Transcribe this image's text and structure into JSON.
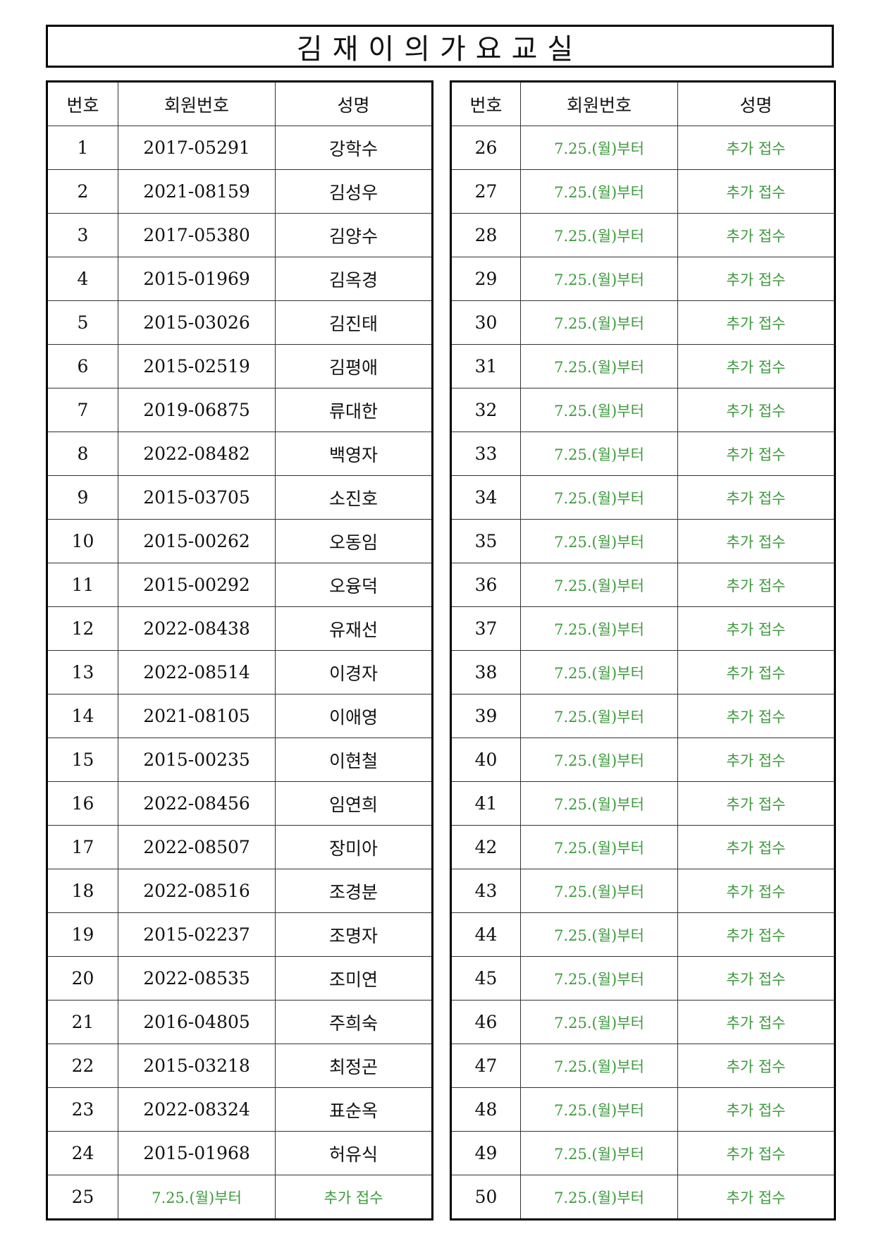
{
  "title": "김재이의가요교실",
  "headers": [
    "번호",
    "회원번호",
    "성명"
  ],
  "pending_text": {
    "member_no": "7.25.(월)부터",
    "name": "추가 접수"
  },
  "colors": {
    "pending": "#3c9a3c"
  },
  "members": [
    {
      "no": "1",
      "member_no": "2017-05291",
      "name": "강학수"
    },
    {
      "no": "2",
      "member_no": "2021-08159",
      "name": "김성우"
    },
    {
      "no": "3",
      "member_no": "2017-05380",
      "name": "김양수"
    },
    {
      "no": "4",
      "member_no": "2015-01969",
      "name": "김옥경"
    },
    {
      "no": "5",
      "member_no": "2015-03026",
      "name": "김진태"
    },
    {
      "no": "6",
      "member_no": "2015-02519",
      "name": "김평애"
    },
    {
      "no": "7",
      "member_no": "2019-06875",
      "name": "류대한"
    },
    {
      "no": "8",
      "member_no": "2022-08482",
      "name": "백영자"
    },
    {
      "no": "9",
      "member_no": "2015-03705",
      "name": "소진호"
    },
    {
      "no": "10",
      "member_no": "2015-00262",
      "name": "오동임"
    },
    {
      "no": "11",
      "member_no": "2015-00292",
      "name": "오융덕"
    },
    {
      "no": "12",
      "member_no": "2022-08438",
      "name": "유재선"
    },
    {
      "no": "13",
      "member_no": "2022-08514",
      "name": "이경자"
    },
    {
      "no": "14",
      "member_no": "2021-08105",
      "name": "이애영"
    },
    {
      "no": "15",
      "member_no": "2015-00235",
      "name": "이현철"
    },
    {
      "no": "16",
      "member_no": "2022-08456",
      "name": "임연희"
    },
    {
      "no": "17",
      "member_no": "2022-08507",
      "name": "장미아"
    },
    {
      "no": "18",
      "member_no": "2022-08516",
      "name": "조경분"
    },
    {
      "no": "19",
      "member_no": "2015-02237",
      "name": "조명자"
    },
    {
      "no": "20",
      "member_no": "2022-08535",
      "name": "조미연"
    },
    {
      "no": "21",
      "member_no": "2016-04805",
      "name": "주희숙"
    },
    {
      "no": "22",
      "member_no": "2015-03218",
      "name": "최정곤"
    },
    {
      "no": "23",
      "member_no": "2022-08324",
      "name": "표순옥"
    },
    {
      "no": "24",
      "member_no": "2015-01968",
      "name": "허유식"
    },
    {
      "no": "25",
      "member_no": "7.25.(월)부터",
      "name": "추가 접수",
      "pending": true
    },
    {
      "no": "26",
      "member_no": "7.25.(월)부터",
      "name": "추가 접수",
      "pending": true
    },
    {
      "no": "27",
      "member_no": "7.25.(월)부터",
      "name": "추가 접수",
      "pending": true
    },
    {
      "no": "28",
      "member_no": "7.25.(월)부터",
      "name": "추가 접수",
      "pending": true
    },
    {
      "no": "29",
      "member_no": "7.25.(월)부터",
      "name": "추가 접수",
      "pending": true
    },
    {
      "no": "30",
      "member_no": "7.25.(월)부터",
      "name": "추가 접수",
      "pending": true
    },
    {
      "no": "31",
      "member_no": "7.25.(월)부터",
      "name": "추가 접수",
      "pending": true
    },
    {
      "no": "32",
      "member_no": "7.25.(월)부터",
      "name": "추가 접수",
      "pending": true
    },
    {
      "no": "33",
      "member_no": "7.25.(월)부터",
      "name": "추가 접수",
      "pending": true
    },
    {
      "no": "34",
      "member_no": "7.25.(월)부터",
      "name": "추가 접수",
      "pending": true
    },
    {
      "no": "35",
      "member_no": "7.25.(월)부터",
      "name": "추가 접수",
      "pending": true
    },
    {
      "no": "36",
      "member_no": "7.25.(월)부터",
      "name": "추가 접수",
      "pending": true
    },
    {
      "no": "37",
      "member_no": "7.25.(월)부터",
      "name": "추가 접수",
      "pending": true
    },
    {
      "no": "38",
      "member_no": "7.25.(월)부터",
      "name": "추가 접수",
      "pending": true
    },
    {
      "no": "39",
      "member_no": "7.25.(월)부터",
      "name": "추가 접수",
      "pending": true
    },
    {
      "no": "40",
      "member_no": "7.25.(월)부터",
      "name": "추가 접수",
      "pending": true
    },
    {
      "no": "41",
      "member_no": "7.25.(월)부터",
      "name": "추가 접수",
      "pending": true
    },
    {
      "no": "42",
      "member_no": "7.25.(월)부터",
      "name": "추가 접수",
      "pending": true
    },
    {
      "no": "43",
      "member_no": "7.25.(월)부터",
      "name": "추가 접수",
      "pending": true
    },
    {
      "no": "44",
      "member_no": "7.25.(월)부터",
      "name": "추가 접수",
      "pending": true
    },
    {
      "no": "45",
      "member_no": "7.25.(월)부터",
      "name": "추가 접수",
      "pending": true
    },
    {
      "no": "46",
      "member_no": "7.25.(월)부터",
      "name": "추가 접수",
      "pending": true
    },
    {
      "no": "47",
      "member_no": "7.25.(월)부터",
      "name": "추가 접수",
      "pending": true
    },
    {
      "no": "48",
      "member_no": "7.25.(월)부터",
      "name": "추가 접수",
      "pending": true
    },
    {
      "no": "49",
      "member_no": "7.25.(월)부터",
      "name": "추가 접수",
      "pending": true
    },
    {
      "no": "50",
      "member_no": "7.25.(월)부터",
      "name": "추가 접수",
      "pending": true
    }
  ]
}
